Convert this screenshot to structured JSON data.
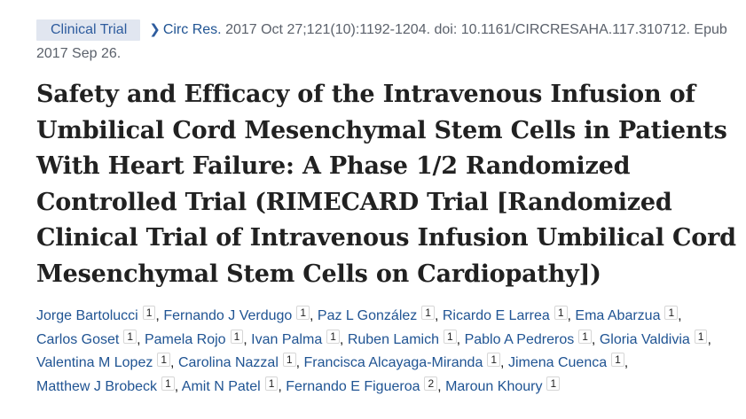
{
  "citation": {
    "pub_type": "Clinical Trial",
    "journal": "Circ Res.",
    "details": "2017 Oct 27;121(10):1192-1204. doi: 10.1161/CIRCRESAHA.117.310712. Epub 2017 Sep 26."
  },
  "article": {
    "title": "Safety and Efficacy of the Intravenous Infusion of Umbilical Cord Mesenchymal Stem Cells in Patients With Heart Failure: A Phase 1/2 Randomized Controlled Trial (RIMECARD Trial [Randomized Clinical Trial of Intravenous Infusion Umbilical Cord Mesenchymal Stem Cells on Cardiopathy])"
  },
  "authors": [
    {
      "name": "Jorge Bartolucci",
      "aff": "1"
    },
    {
      "name": "Fernando J Verdugo",
      "aff": "1"
    },
    {
      "name": "Paz L González",
      "aff": "1"
    },
    {
      "name": "Ricardo E Larrea",
      "aff": "1"
    },
    {
      "name": "Ema Abarzua",
      "aff": "1"
    },
    {
      "name": "Carlos Goset",
      "aff": "1"
    },
    {
      "name": "Pamela Rojo",
      "aff": "1"
    },
    {
      "name": "Ivan Palma",
      "aff": "1"
    },
    {
      "name": "Ruben Lamich",
      "aff": "1"
    },
    {
      "name": "Pablo A Pedreros",
      "aff": "1"
    },
    {
      "name": "Gloria Valdivia",
      "aff": "1"
    },
    {
      "name": "Valentina M Lopez",
      "aff": "1"
    },
    {
      "name": "Carolina Nazzal",
      "aff": "1"
    },
    {
      "name": "Francisca Alcayaga-Miranda",
      "aff": "1"
    },
    {
      "name": "Jimena Cuenca",
      "aff": "1"
    },
    {
      "name": "Matthew J Brobeck",
      "aff": "1"
    },
    {
      "name": "Amit N Patel",
      "aff": "1"
    },
    {
      "name": "Fernando E Figueroa",
      "aff": "2"
    },
    {
      "name": "Maroun Khoury",
      "aff": "1"
    }
  ],
  "icons": {
    "journal_chevron": "chevron-right-icon"
  },
  "colors": {
    "link": "#205493",
    "badge_bg": "#e1e6f0",
    "text": "#212121",
    "muted": "#5b616b"
  }
}
